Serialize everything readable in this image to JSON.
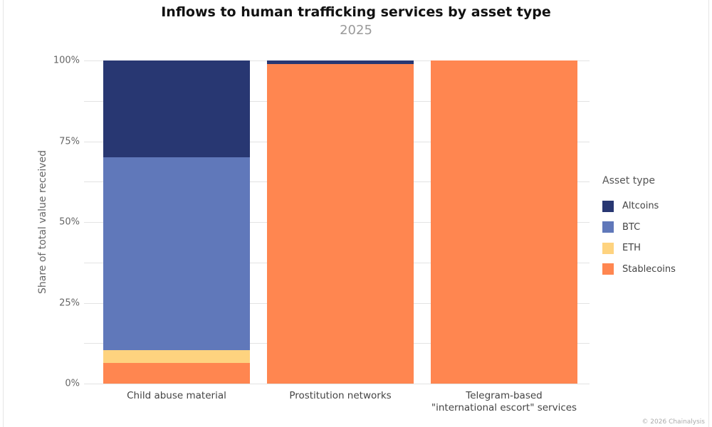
{
  "header": {
    "title": "Inflows to human trafficking services by asset type",
    "subtitle": "2025"
  },
  "axes": {
    "ylabel": "Share of total value received",
    "yticks": [
      "0%",
      "25%",
      "50%",
      "75%",
      "100%"
    ]
  },
  "legend": {
    "title": "Asset type",
    "items": [
      {
        "label": "Altcoins",
        "color": "#283772"
      },
      {
        "label": "BTC",
        "color": "#6078BA"
      },
      {
        "label": "ETH",
        "color": "#FED37F"
      },
      {
        "label": "Stablecoins",
        "color": "#FF8650"
      }
    ]
  },
  "credit": "© 2026 Chainalysis",
  "categories_display": [
    {
      "line1": "Child abuse material",
      "line2": ""
    },
    {
      "line1": "Prostitution networks",
      "line2": ""
    },
    {
      "line1": "Telegram-based",
      "line2": "\"international escort\" services"
    }
  ],
  "chart_data": {
    "type": "bar",
    "stacked": true,
    "title": "Inflows to human trafficking services by asset type",
    "subtitle": "2025",
    "xlabel": "",
    "ylabel": "Share of total value received",
    "ylim": [
      0,
      100
    ],
    "yticks": [
      0,
      25,
      50,
      75,
      100
    ],
    "ytick_format": "percent",
    "grid": true,
    "legend_position": "right",
    "legend_title": "Asset type",
    "categories": [
      "Child abuse material",
      "Prostitution networks",
      "Telegram-based \"international escort\" services"
    ],
    "series": [
      {
        "name": "Stablecoins",
        "color": "#FF8650",
        "values": [
          6.4,
          99.0,
          100.0
        ]
      },
      {
        "name": "ETH",
        "color": "#FED37F",
        "values": [
          4.0,
          0.0,
          0.0
        ]
      },
      {
        "name": "BTC",
        "color": "#6078BA",
        "values": [
          59.6,
          0.0,
          0.0
        ]
      },
      {
        "name": "Altcoins",
        "color": "#283772",
        "values": [
          30.0,
          1.0,
          0.0
        ]
      }
    ]
  }
}
